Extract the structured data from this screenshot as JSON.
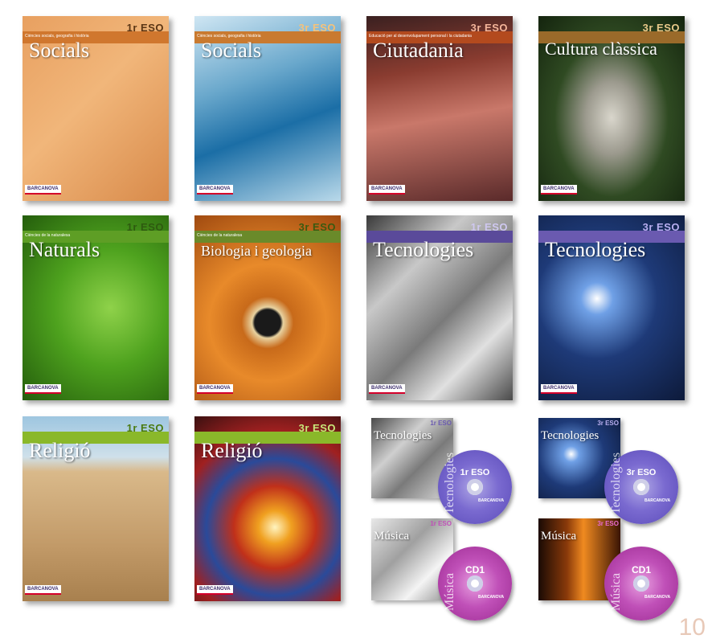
{
  "covers": [
    {
      "title": "Socials",
      "level": "1r ESO",
      "subtitle": "Ciències socials, geografia i història",
      "logo": "BARCANOVA",
      "bg": "linear-gradient(135deg,#e8a060 0%,#f1b67a 45%,#d88a4a 100%)",
      "band": "#d0772e",
      "eso_color": "#5a3514"
    },
    {
      "title": "Socials",
      "level": "3r ESO",
      "subtitle": "Ciències socials, geografia i història",
      "logo": "BARCANOVA",
      "bg": "linear-gradient(160deg,#cfe6f3 0%,#6aa8cc 35%,#1b6ea6 60%,#b9d9ea 100%)",
      "band": "#c97a30",
      "eso_color": "#f6c27a"
    },
    {
      "title": "Ciutadania",
      "level": "3r ESO",
      "subtitle": "Educació per al desenvolupament personal i la ciutadania",
      "logo": "BARCANOVA",
      "bg": "linear-gradient(170deg,#3a2020 0%,#8a3c30 30%,#c9786a 55%,#5a2a2a 100%)",
      "band": "#b34a1e",
      "eso_color": "#f4b59a"
    },
    {
      "title": "Cultura clàssica",
      "level": "3r ESO",
      "subtitle": "",
      "logo": "BARCANOVA",
      "bg": "radial-gradient(ellipse at 50% 55%,#d9d6cc 0%,#9c9a8e 25%,#2f4a22 55%,#14240e 100%)",
      "band": "#9a6a2a",
      "eso_color": "#e9c98a"
    },
    {
      "title": "Naturals",
      "level": "1r ESO",
      "subtitle": "Ciències de la naturalesa",
      "logo": "BARCANOVA",
      "bg": "radial-gradient(ellipse at 60% 50%,#8fd24a 0%,#4ea21e 45%,#245d0c 100%)",
      "band": "#5e9e25",
      "eso_color": "#2e5a10"
    },
    {
      "title": "Biologia i geologia",
      "level": "3r ESO",
      "subtitle": "Ciències de la naturalesa",
      "logo": "BARCANOVA",
      "bg": "radial-gradient(circle at 50% 58%,#1a1a1a 0%,#1a1a1a 10%,#e8d2a0 12%,#c86a1a 20%,#e88a2a 45%,#a04a10 100%)",
      "band": "#6a8a2a",
      "eso_color": "#3a5a10"
    },
    {
      "title": "Tecnologies",
      "level": "1r ESO",
      "subtitle": "",
      "logo": "BARCANOVA",
      "bg": "linear-gradient(135deg,#3a3a3a 0%,#c8c8c8 30%,#7a7a7a 55%,#e0e0e0 75%,#4a4a4a 100%)",
      "band": "#5a4a9a",
      "eso_color": "#cfc8f0"
    },
    {
      "title": "Tecnologies",
      "level": "3r ESO",
      "subtitle": "",
      "logo": "BARCANOVA",
      "bg": "radial-gradient(circle at 40% 45%,#ffffff 0%,#6fa0e6 12%,#1e3a78 45%,#0d1a3a 100%)",
      "band": "#6a5ab0",
      "eso_color": "#b8aef0"
    },
    {
      "title": "Religió",
      "level": "1r ESO",
      "subtitle": "",
      "logo": "BARCANOVA",
      "bg": "linear-gradient(180deg,#9ec6e0 0%,#cfe0ea 22%,#d9b98a 30%,#c29a68 70%,#a8804e 100%)",
      "band": "#8ab82a",
      "eso_color": "#4a7a10"
    },
    {
      "title": "Religió",
      "level": "3r ESO",
      "subtitle": "",
      "logo": "BARCANOVA",
      "bg": "radial-gradient(circle at 55% 60%,#fff4c0 0%,#f0a020 12%,#c0301a 30%,#2a4a9a 50%,#a02020 70%,#3a1010 100%)",
      "band": "#8ab82a",
      "eso_color": "#c8e87a"
    }
  ],
  "media": [
    {
      "title": "Tecnologies",
      "level": "1r ESO",
      "disc_label": "1r ESO",
      "disc_text": "Tecnologies",
      "logo": "BARCANOVA",
      "box_bg": "linear-gradient(135deg,#4a4a4a 0%,#cfcfcf 35%,#7a7a7a 60%,#dcdcdc 100%)",
      "disc_bg": "radial-gradient(circle,#b0a8e6 0%,#7a6ad0 45%,#5a4ab8 100%)"
    },
    {
      "title": "Tecnologies",
      "level": "3r ESO",
      "disc_label": "3r ESO",
      "disc_text": "Tecnologies",
      "logo": "BARCANOVA",
      "box_bg": "radial-gradient(circle at 40% 45%,#ffffff 0%,#6fa0e6 12%,#1e3a78 50%,#0d1a3a 100%)",
      "disc_bg": "radial-gradient(circle,#b0a8e6 0%,#7a6ad0 45%,#5a4ab8 100%)"
    },
    {
      "title": "Música",
      "level": "1r ESO",
      "disc_label": "CD1",
      "disc_text": "Música",
      "logo": "BARCANOVA",
      "box_bg": "linear-gradient(135deg,#e8e8e8 0%,#a0a0a0 40%,#f4f4f4 70%,#8a8a8a 100%)",
      "disc_bg": "radial-gradient(circle,#e8a0e0 0%,#c050b8 45%,#9a2a90 100%)"
    },
    {
      "title": "Música",
      "level": "3r ESO",
      "disc_label": "CD1",
      "disc_text": "Música",
      "logo": "BARCANOVA",
      "box_bg": "linear-gradient(90deg,#1a0a04 0%,#8a3a0a 35%,#f08a20 55%,#3a1404 100%)",
      "disc_bg": "radial-gradient(circle,#e8a0e0 0%,#c050b8 45%,#9a2a90 100%)"
    }
  ],
  "page_number": "10"
}
